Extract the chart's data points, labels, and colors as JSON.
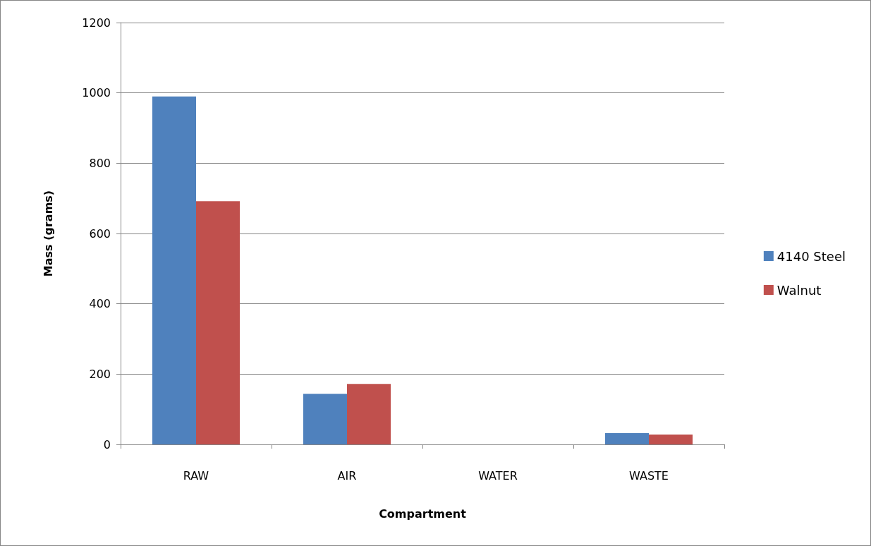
{
  "chart_data": {
    "type": "bar",
    "xlabel": "Compartment",
    "ylabel": "Mass (grams)",
    "categories": [
      "RAW",
      "AIR",
      "WATER",
      "WASTE"
    ],
    "series": [
      {
        "name": "4140 Steel",
        "color": "#4f81bd",
        "values": [
          990,
          144,
          0,
          32
        ]
      },
      {
        "name": "Walnut",
        "color": "#c0504d",
        "values": [
          692,
          172,
          0,
          28
        ]
      }
    ],
    "ylim": [
      0,
      1200
    ],
    "yticks": [
      0,
      200,
      400,
      600,
      800,
      1000,
      1200
    ],
    "grid": "y",
    "legend": "right"
  }
}
